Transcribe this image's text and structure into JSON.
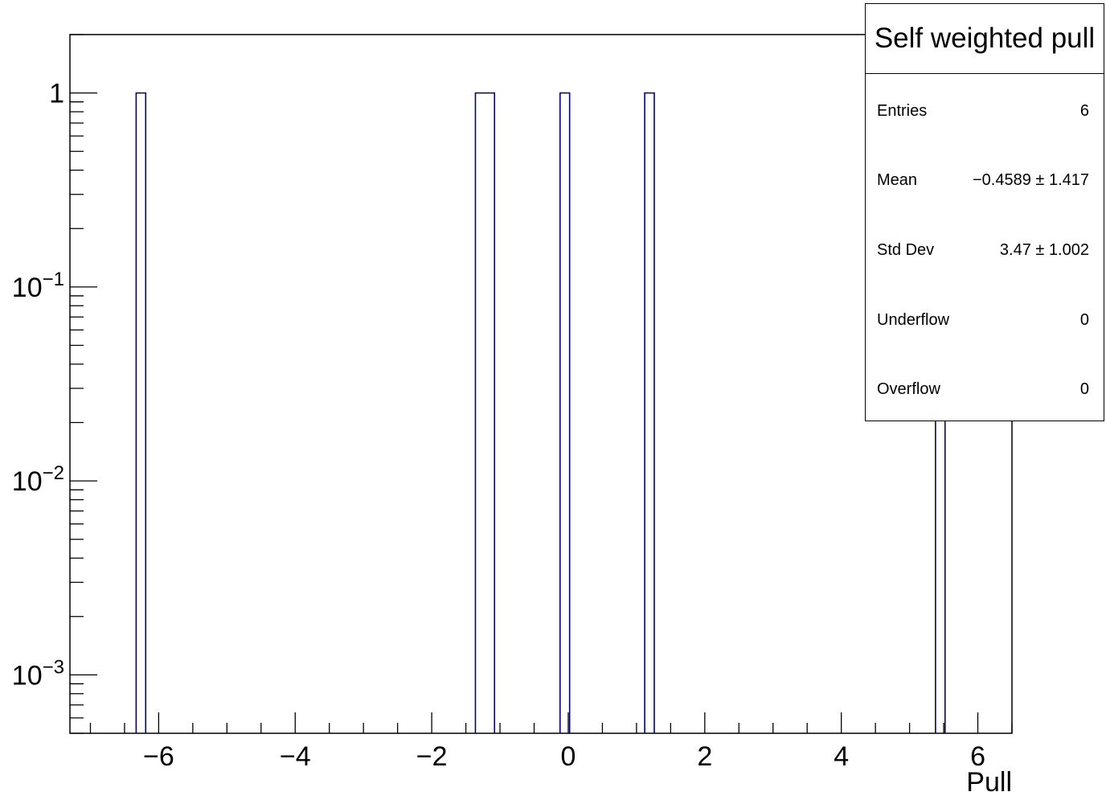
{
  "chart_data": {
    "type": "histogram",
    "xlabel": "Pull",
    "ylabel": "",
    "xlim": [
      -7.3,
      6.5
    ],
    "ylim": [
      0.0005,
      2.0
    ],
    "y_scale": "log",
    "x_ticks": [
      "−6",
      "−4",
      "−2",
      "0",
      "2",
      "4",
      "6"
    ],
    "x_tick_values": [
      -6,
      -4,
      -2,
      0,
      2,
      4,
      6
    ],
    "y_ticks": [
      {
        "value": 1,
        "base": "1",
        "exp": ""
      },
      {
        "value": 0.1,
        "base": "10",
        "exp": "−1"
      },
      {
        "value": 0.01,
        "base": "10",
        "exp": "−2"
      },
      {
        "value": 0.001,
        "base": "10",
        "exp": "−3"
      }
    ],
    "bins": [
      {
        "x0": -6.33,
        "x1": -6.19,
        "value": 1
      },
      {
        "x0": -1.36,
        "x1": -1.08,
        "value": 1
      },
      {
        "x0": -0.12,
        "x1": 0.02,
        "value": 1
      },
      {
        "x0": 1.12,
        "x1": 1.26,
        "value": 1
      },
      {
        "x0": 5.38,
        "x1": 5.52,
        "value": 1
      }
    ],
    "line_color": "#000080",
    "grid": false
  },
  "stats": {
    "title": "Self weighted pull",
    "rows": [
      {
        "label": "Entries",
        "value": "6"
      },
      {
        "label": "Mean",
        "value": "−0.4589 ±  1.417"
      },
      {
        "label": "Std Dev",
        "value": "3.47 ±  1.002"
      },
      {
        "label": "Underflow",
        "value": "0"
      },
      {
        "label": "Overflow",
        "value": "0"
      }
    ]
  }
}
